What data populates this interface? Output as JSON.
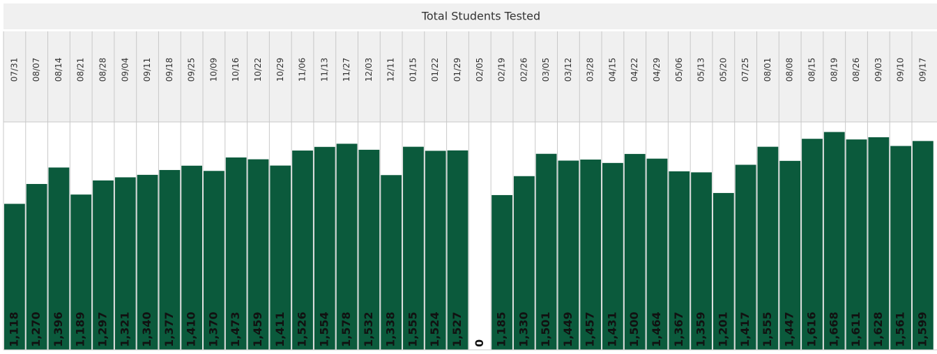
{
  "chart_data": {
    "type": "bar",
    "title": "Total Students Tested",
    "categories": [
      "07/31",
      "08/07",
      "08/14",
      "08/21",
      "08/28",
      "09/04",
      "09/11",
      "09/18",
      "09/25",
      "10/09",
      "10/16",
      "10/22",
      "10/29",
      "11/06",
      "11/13",
      "11/27",
      "12/03",
      "12/11",
      "01/15",
      "01/22",
      "01/29",
      "02/05",
      "02/19",
      "02/26",
      "03/05",
      "03/12",
      "03/28",
      "04/15",
      "04/22",
      "04/29",
      "05/06",
      "05/13",
      "05/20",
      "07/25",
      "08/01",
      "08/08",
      "08/15",
      "08/19",
      "08/26",
      "09/03",
      "09/10",
      "09/17"
    ],
    "values": [
      1118,
      1270,
      1396,
      1189,
      1297,
      1321,
      1340,
      1377,
      1410,
      1370,
      1473,
      1459,
      1411,
      1526,
      1554,
      1578,
      1532,
      1338,
      1555,
      1524,
      1527,
      0,
      1185,
      1330,
      1501,
      1449,
      1457,
      1431,
      1500,
      1464,
      1367,
      1359,
      1201,
      1417,
      1555,
      1447,
      1616,
      1668,
      1611,
      1628,
      1561,
      1599
    ],
    "value_labels": [
      "1,118",
      "1,270",
      "1,396",
      "1,189",
      "1,297",
      "1,321",
      "1,340",
      "1,377",
      "1,410",
      "1,370",
      "1,473",
      "1,459",
      "1,411",
      "1,526",
      "1,554",
      "1,578",
      "1,532",
      "1,338",
      "1,555",
      "1,524",
      "1,527",
      "0",
      "1,185",
      "1,330",
      "1,501",
      "1,449",
      "1,457",
      "1,431",
      "1,500",
      "1,464",
      "1,367",
      "1,359",
      "1,201",
      "1,417",
      "1,555",
      "1,447",
      "1,616",
      "1,668",
      "1,611",
      "1,628",
      "1,561",
      "1,599"
    ],
    "color": "#0b5a3c",
    "ylim": [
      0,
      1745
    ]
  }
}
